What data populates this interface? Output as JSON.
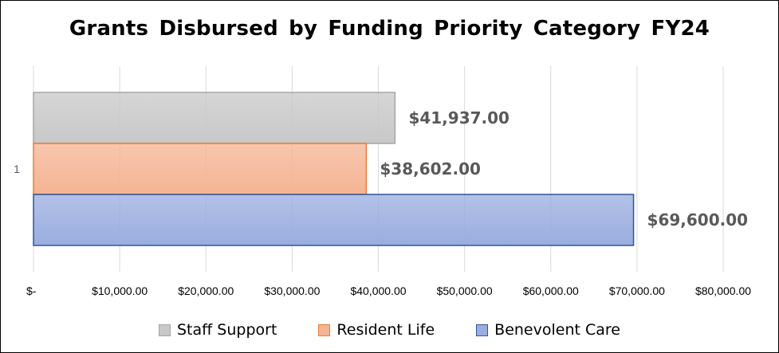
{
  "chart_data": {
    "type": "bar",
    "orientation": "horizontal",
    "title": "Grants Disbursed by Funding Priority Category FY24",
    "categories": [
      "1"
    ],
    "series": [
      {
        "name": "Staff Support",
        "values": [
          41937
        ],
        "label": "$41,937.00",
        "fill": "#c8c8c8",
        "stroke": "#a5a5a5"
      },
      {
        "name": "Resident Life",
        "values": [
          38602
        ],
        "label": "$38,602.00",
        "fill": "#f5b493",
        "stroke": "#ed7d31"
      },
      {
        "name": "Benevolent Care",
        "values": [
          69600
        ],
        "label": "$69,600.00",
        "fill": "#9aaddf",
        "stroke": "#2f5597"
      }
    ],
    "xlim": [
      0,
      80000
    ],
    "x_ticks": [
      {
        "value": 0,
        "label": "$-"
      },
      {
        "value": 10000,
        "label": "$10,000.00"
      },
      {
        "value": 20000,
        "label": "$20,000.00"
      },
      {
        "value": 30000,
        "label": "$30,000.00"
      },
      {
        "value": 40000,
        "label": "$40,000.00"
      },
      {
        "value": 50000,
        "label": "$50,000.00"
      },
      {
        "value": 60000,
        "label": "$60,000.00"
      },
      {
        "value": 70000,
        "label": "$70,000.00"
      },
      {
        "value": 80000,
        "label": "$80,000.00"
      }
    ],
    "grid": true,
    "legend_position": "bottom",
    "gridline_color": "#d9d9d9"
  }
}
